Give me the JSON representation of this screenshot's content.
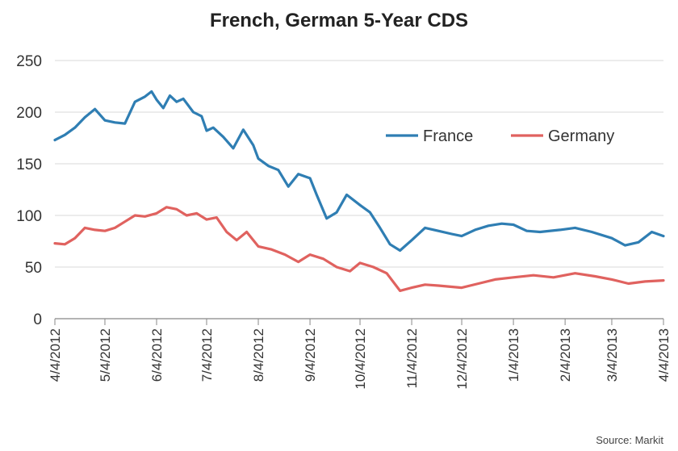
{
  "chart_data": {
    "type": "line",
    "title": "French, German 5-Year CDS",
    "source": "Source: Markit",
    "xlabel": "",
    "ylabel": "",
    "ylim": [
      0,
      250
    ],
    "yticks": [
      0,
      50,
      100,
      150,
      200,
      250
    ],
    "xlim": [
      "4/4/2012",
      "4/4/2013"
    ],
    "xticks": [
      "4/4/2012",
      "5/4/2012",
      "6/4/2012",
      "7/4/2012",
      "8/4/2012",
      "9/4/2012",
      "10/4/2012",
      "11/4/2012",
      "12/4/2012",
      "1/4/2013",
      "2/4/2013",
      "3/4/2013",
      "4/4/2013"
    ],
    "grid": true,
    "legend": "top-right",
    "series": [
      {
        "name": "France",
        "color": "#2f7eb3",
        "points": [
          [
            "4/4/2012",
            173
          ],
          [
            "4/10/2012",
            178
          ],
          [
            "4/16/2012",
            185
          ],
          [
            "4/22/2012",
            195
          ],
          [
            "4/28/2012",
            203
          ],
          [
            "5/4/2012",
            192
          ],
          [
            "5/10/2012",
            190
          ],
          [
            "5/16/2012",
            189
          ],
          [
            "5/22/2012",
            210
          ],
          [
            "5/28/2012",
            215
          ],
          [
            "6/1/2012",
            220
          ],
          [
            "6/4/2012",
            212
          ],
          [
            "6/8/2012",
            204
          ],
          [
            "6/12/2012",
            216
          ],
          [
            "6/16/2012",
            210
          ],
          [
            "6/20/2012",
            213
          ],
          [
            "6/26/2012",
            200
          ],
          [
            "7/1/2012",
            196
          ],
          [
            "7/4/2012",
            182
          ],
          [
            "7/8/2012",
            185
          ],
          [
            "7/14/2012",
            176
          ],
          [
            "7/20/2012",
            165
          ],
          [
            "7/26/2012",
            183
          ],
          [
            "8/1/2012",
            168
          ],
          [
            "8/4/2012",
            155
          ],
          [
            "8/10/2012",
            148
          ],
          [
            "8/16/2012",
            144
          ],
          [
            "8/22/2012",
            128
          ],
          [
            "8/28/2012",
            140
          ],
          [
            "9/4/2012",
            136
          ],
          [
            "9/8/2012",
            120
          ],
          [
            "9/14/2012",
            97
          ],
          [
            "9/20/2012",
            103
          ],
          [
            "9/26/2012",
            120
          ],
          [
            "10/4/2012",
            110
          ],
          [
            "10/10/2012",
            103
          ],
          [
            "10/16/2012",
            88
          ],
          [
            "10/22/2012",
            72
          ],
          [
            "10/28/2012",
            66
          ],
          [
            "11/4/2012",
            76
          ],
          [
            "11/12/2012",
            88
          ],
          [
            "11/20/2012",
            85
          ],
          [
            "11/28/2012",
            82
          ],
          [
            "12/4/2012",
            80
          ],
          [
            "12/12/2012",
            86
          ],
          [
            "12/20/2012",
            90
          ],
          [
            "12/28/2012",
            92
          ],
          [
            "1/4/2013",
            91
          ],
          [
            "1/12/2013",
            85
          ],
          [
            "1/20/2013",
            84
          ],
          [
            "2/1/2013",
            86
          ],
          [
            "2/10/2013",
            88
          ],
          [
            "2/20/2013",
            84
          ],
          [
            "3/4/2013",
            78
          ],
          [
            "3/12/2013",
            71
          ],
          [
            "3/20/2013",
            74
          ],
          [
            "3/28/2013",
            84
          ],
          [
            "4/4/2013",
            80
          ]
        ]
      },
      {
        "name": "Germany",
        "color": "#e0625f",
        "points": [
          [
            "4/4/2012",
            73
          ],
          [
            "4/10/2012",
            72
          ],
          [
            "4/16/2012",
            78
          ],
          [
            "4/22/2012",
            88
          ],
          [
            "4/28/2012",
            86
          ],
          [
            "5/4/2012",
            85
          ],
          [
            "5/10/2012",
            88
          ],
          [
            "5/16/2012",
            94
          ],
          [
            "5/22/2012",
            100
          ],
          [
            "5/28/2012",
            99
          ],
          [
            "6/4/2012",
            102
          ],
          [
            "6/10/2012",
            108
          ],
          [
            "6/16/2012",
            106
          ],
          [
            "6/22/2012",
            100
          ],
          [
            "6/28/2012",
            102
          ],
          [
            "7/4/2012",
            96
          ],
          [
            "7/10/2012",
            98
          ],
          [
            "7/16/2012",
            84
          ],
          [
            "7/22/2012",
            76
          ],
          [
            "7/28/2012",
            84
          ],
          [
            "8/4/2012",
            70
          ],
          [
            "8/12/2012",
            67
          ],
          [
            "8/20/2012",
            62
          ],
          [
            "8/28/2012",
            55
          ],
          [
            "9/4/2012",
            62
          ],
          [
            "9/12/2012",
            58
          ],
          [
            "9/20/2012",
            50
          ],
          [
            "9/28/2012",
            46
          ],
          [
            "10/4/2012",
            54
          ],
          [
            "10/12/2012",
            50
          ],
          [
            "10/20/2012",
            44
          ],
          [
            "10/28/2012",
            27
          ],
          [
            "11/4/2012",
            30
          ],
          [
            "11/12/2012",
            33
          ],
          [
            "11/20/2012",
            32
          ],
          [
            "12/4/2012",
            30
          ],
          [
            "12/14/2012",
            34
          ],
          [
            "12/24/2012",
            38
          ],
          [
            "1/4/2013",
            40
          ],
          [
            "1/16/2013",
            42
          ],
          [
            "1/28/2013",
            40
          ],
          [
            "2/10/2013",
            44
          ],
          [
            "2/22/2013",
            41
          ],
          [
            "3/4/2013",
            38
          ],
          [
            "3/14/2013",
            34
          ],
          [
            "3/24/2013",
            36
          ],
          [
            "4/4/2013",
            37
          ]
        ]
      }
    ]
  }
}
